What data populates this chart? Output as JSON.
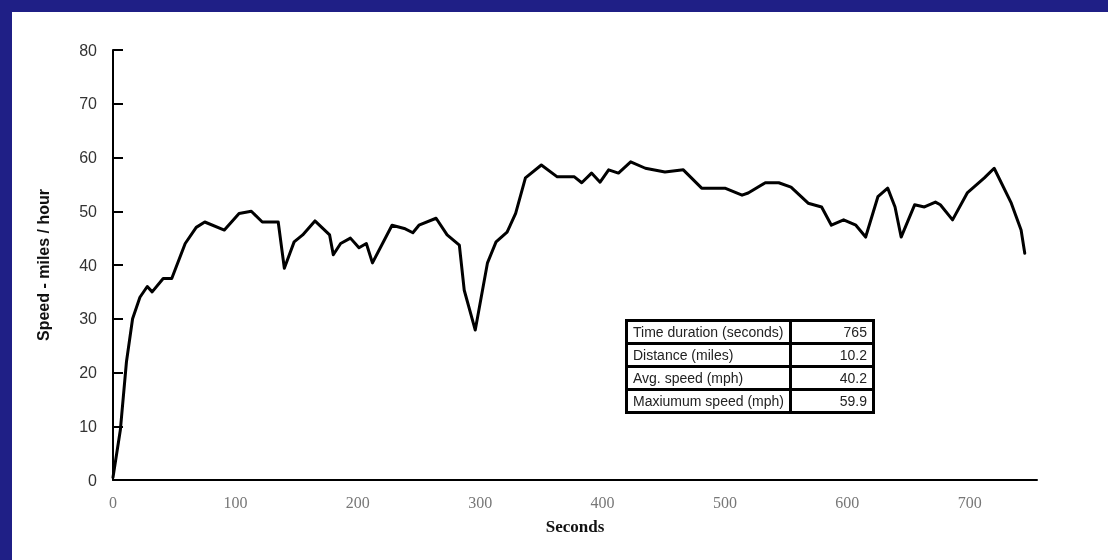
{
  "chart_data": {
    "type": "line",
    "xlabel": "Seconds",
    "ylabel": "Speed - miles / hour",
    "xlim": [
      0,
      755
    ],
    "xticks": [
      0,
      100,
      200,
      300,
      400,
      500,
      600,
      700
    ],
    "ylim": [
      0,
      80
    ],
    "yticks": [
      0,
      10,
      20,
      30,
      40,
      50,
      60,
      70,
      80
    ],
    "grid": false,
    "marker": "none",
    "line_style": "solid",
    "annotations": [
      "Time duration (seconds)",
      "765",
      "Distance (miles)",
      "10.2",
      "Avg. speed (mph)",
      "40.2",
      "Maxiumum speed (mph)",
      "59.9"
    ],
    "series": [
      {
        "color": "#000000",
        "x": [
          0,
          6,
          11,
          16,
          22,
          28,
          32,
          41,
          48,
          59,
          68,
          75,
          91,
          103,
          113,
          122,
          135,
          140,
          148,
          155,
          165,
          177,
          180,
          186,
          194,
          201,
          207,
          212,
          228,
          238,
          245,
          250,
          264,
          273,
          283,
          287,
          296,
          306,
          313,
          322,
          329,
          337,
          350,
          363,
          377,
          383,
          391,
          398,
          405,
          413,
          423,
          435,
          451,
          466,
          481,
          500,
          514,
          519,
          533,
          544,
          554,
          568,
          579,
          587,
          597,
          607,
          615,
          625,
          633,
          639,
          644,
          655,
          663,
          672,
          676,
          686,
          698,
          712,
          720,
          734,
          742,
          745
        ],
        "values": [
          0.5,
          9.3,
          22,
          30,
          34,
          36,
          35,
          37.5,
          37.5,
          44,
          47,
          48,
          46.5,
          49.6,
          50,
          48,
          48,
          39.4,
          44.3,
          45.6,
          48.2,
          45.6,
          41.9,
          44,
          45,
          43.2,
          44,
          40.4,
          47.4,
          46.8,
          46,
          47.4,
          48.7,
          45.6,
          43.7,
          35.3,
          27.9,
          40.4,
          44.3,
          46.1,
          49.6,
          56.2,
          58.6,
          56.4,
          56.4,
          55.3,
          57.1,
          55.4,
          57.7,
          57.1,
          59.2,
          58,
          57.3,
          57.7,
          54.3,
          54.3,
          53,
          53.4,
          55.3,
          55.3,
          54.5,
          51.5,
          50.8,
          47.4,
          48.4,
          47.4,
          45.2,
          52.7,
          54.3,
          50.8,
          45.2,
          51.2,
          50.8,
          51.7,
          51.2,
          48.4,
          53.4,
          56.2,
          58,
          51.5,
          46.5,
          42.2
        ]
      }
    ]
  }
}
